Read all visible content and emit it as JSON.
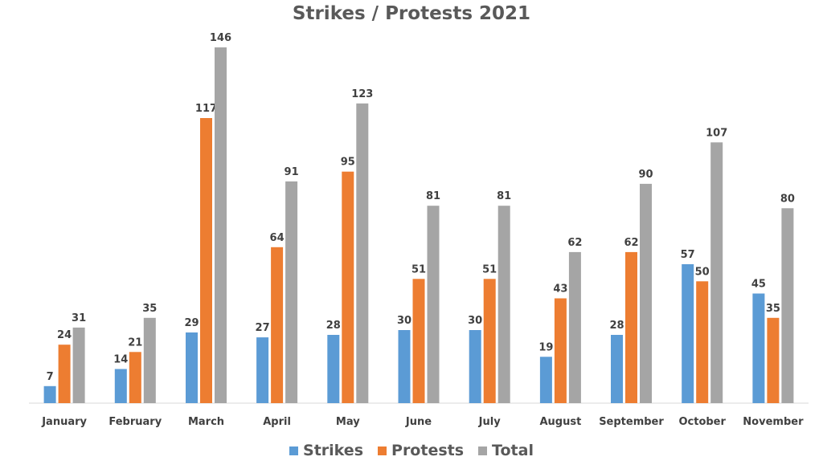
{
  "chart_data": {
    "type": "bar",
    "title": "Strikes / Protests 2021",
    "categories": [
      "January",
      "February",
      "March",
      "April",
      "May",
      "June",
      "July",
      "August",
      "September",
      "October",
      "November"
    ],
    "series": [
      {
        "name": "Strikes",
        "color": "#5b9bd5",
        "values": [
          7,
          14,
          29,
          27,
          28,
          30,
          30,
          19,
          28,
          57,
          45
        ]
      },
      {
        "name": "Protests",
        "color": "#ed7d31",
        "values": [
          24,
          21,
          117,
          64,
          95,
          51,
          51,
          43,
          62,
          50,
          35
        ]
      },
      {
        "name": "Total",
        "color": "#a5a5a5",
        "values": [
          31,
          35,
          146,
          91,
          123,
          81,
          81,
          62,
          90,
          107,
          80
        ]
      }
    ],
    "xlabel": "",
    "ylabel": "",
    "ylim": [
      0,
      146
    ],
    "grid": false,
    "data_labels": true,
    "legend_position": "bottom"
  }
}
